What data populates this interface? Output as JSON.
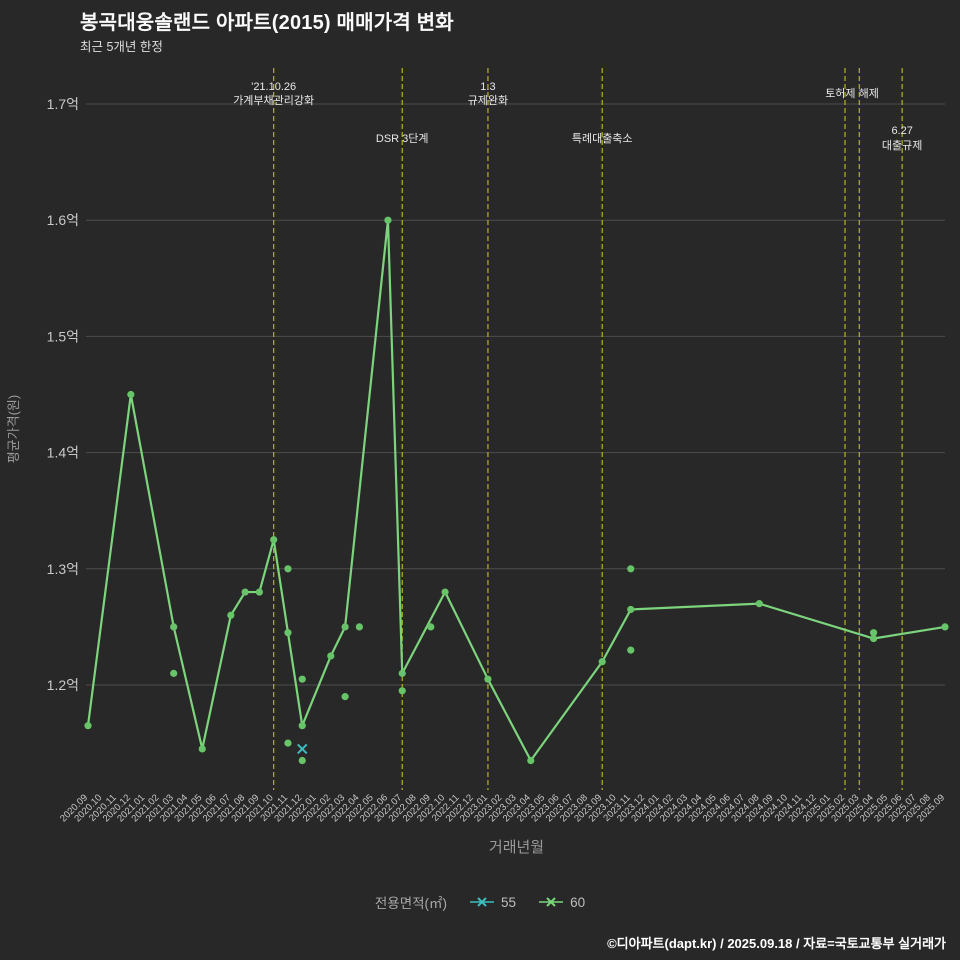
{
  "header": {
    "title": "봉곡대웅솔랜드 아파트(2015) 매매가격 변화",
    "subtitle": "최근 5개년 한정"
  },
  "footer": {
    "credit": "©디아파트(dapt.kr) / 2025.09.18 / 자료=국토교통부 실거래가"
  },
  "legend": {
    "label": "전용면적(㎡)",
    "items": [
      {
        "name": "55",
        "color": "#3dbdbd"
      },
      {
        "name": "60",
        "color": "#7cd47c"
      }
    ]
  },
  "chart_data": {
    "type": "line",
    "title": "봉곡대웅솔랜드 아파트(2015) 매매가격 변화",
    "subtitle": "최근 5개년 한정",
    "xlabel": "거래년월",
    "ylabel": "평균가격(원)",
    "unit": "억",
    "ylim": [
      1.11,
      1.73
    ],
    "grid": "horizontal",
    "legend_position": "bottom",
    "colors": {
      "background": "#282828",
      "grid": "#4d4d4d",
      "tick_text": "#c9c9c9",
      "axis_title": "#9a9a9a",
      "event_line": "#b5b51e",
      "event_text": "#e8e8e8",
      "line_60": "#7cd47c",
      "marker_60": "#68c468",
      "series_55": "#3dbdbd"
    },
    "y_ticks": [
      {
        "value": 1.2,
        "label": "1.2억"
      },
      {
        "value": 1.3,
        "label": "1.3억"
      },
      {
        "value": 1.4,
        "label": "1.4억"
      },
      {
        "value": 1.5,
        "label": "1.5억"
      },
      {
        "value": 1.6,
        "label": "1.6억"
      },
      {
        "value": 1.7,
        "label": "1.7억"
      }
    ],
    "categories": [
      "2020.09",
      "2020.10",
      "2020.11",
      "2020.12",
      "2021.01",
      "2021.02",
      "2021.03",
      "2021.04",
      "2021.05",
      "2021.06",
      "2021.07",
      "2021.08",
      "2021.09",
      "2021.10",
      "2021.11",
      "2021.12",
      "2022.01",
      "2022.02",
      "2022.03",
      "2022.04",
      "2022.05",
      "2022.06",
      "2022.07",
      "2022.08",
      "2022.09",
      "2022.10",
      "2022.11",
      "2022.12",
      "2023.01",
      "2023.02",
      "2023.03",
      "2023.04",
      "2023.05",
      "2023.06",
      "2023.07",
      "2023.08",
      "2023.09",
      "2023.10",
      "2023.11",
      "2023.12",
      "2024.01",
      "2024.02",
      "2024.03",
      "2024.04",
      "2024.05",
      "2024.06",
      "2024.07",
      "2024.08",
      "2024.09",
      "2024.10",
      "2024.11",
      "2024.12",
      "2025.01",
      "2025.02",
      "2025.03",
      "2025.04",
      "2025.05",
      "2025.06",
      "2025.07",
      "2025.08",
      "2025.09"
    ],
    "series": [
      {
        "name": "55",
        "style": "xmarker",
        "color": "#3dbdbd",
        "points": [
          {
            "x": "2021.12",
            "y": 1.145
          }
        ]
      },
      {
        "name": "60",
        "style": "line",
        "color": "#7cd47c",
        "marker_color": "#68c468",
        "points": [
          {
            "x": "2020.09",
            "y": 1.165
          },
          {
            "x": "2020.12",
            "y": 1.45
          },
          {
            "x": "2021.03",
            "y": 1.25
          },
          {
            "x": "2021.05",
            "y": 1.145
          },
          {
            "x": "2021.07",
            "y": 1.26
          },
          {
            "x": "2021.08",
            "y": 1.28
          },
          {
            "x": "2021.09",
            "y": 1.28
          },
          {
            "x": "2021.10",
            "y": 1.325
          },
          {
            "x": "2021.11",
            "y": 1.245
          },
          {
            "x": "2021.12",
            "y": 1.165
          },
          {
            "x": "2022.02",
            "y": 1.225
          },
          {
            "x": "2022.03",
            "y": 1.25
          },
          {
            "x": "2022.06",
            "y": 1.6
          },
          {
            "x": "2022.07",
            "y": 1.21
          },
          {
            "x": "2022.10",
            "y": 1.28
          },
          {
            "x": "2023.01",
            "y": 1.205
          },
          {
            "x": "2023.04",
            "y": 1.135
          },
          {
            "x": "2023.09",
            "y": 1.22
          },
          {
            "x": "2023.11",
            "y": 1.265
          },
          {
            "x": "2024.08",
            "y": 1.27
          },
          {
            "x": "2025.04",
            "y": 1.24
          },
          {
            "x": "2025.09",
            "y": 1.25
          }
        ],
        "extra_points": [
          {
            "x": "2021.03",
            "y": 1.21
          },
          {
            "x": "2021.11",
            "y": 1.3
          },
          {
            "x": "2021.11",
            "y": 1.15
          },
          {
            "x": "2021.12",
            "y": 1.205
          },
          {
            "x": "2021.12",
            "y": 1.135
          },
          {
            "x": "2022.03",
            "y": 1.19
          },
          {
            "x": "2022.04",
            "y": 1.25
          },
          {
            "x": "2022.07",
            "y": 1.195
          },
          {
            "x": "2022.09",
            "y": 1.25
          },
          {
            "x": "2023.11",
            "y": 1.3
          },
          {
            "x": "2023.11",
            "y": 1.23
          },
          {
            "x": "2025.04",
            "y": 1.245
          }
        ]
      }
    ],
    "events": [
      {
        "month": "2021.10",
        "row": "top",
        "lines": [
          "'21.10.26",
          "가계부채관리강화"
        ]
      },
      {
        "month": "2022.07",
        "row": "mid",
        "lines": [
          "DSR 3단계"
        ]
      },
      {
        "month": "2023.01",
        "row": "top",
        "lines": [
          "1.3",
          "규제완화"
        ]
      },
      {
        "month": "2023.09",
        "row": "mid",
        "lines": [
          "특례대출축소"
        ]
      },
      {
        "month": "2025.02",
        "row": "top",
        "dx": 7,
        "lines": [
          "토허제 해제"
        ]
      },
      {
        "month": "2025.03",
        "row": "top",
        "lines": []
      },
      {
        "month": "2025.06",
        "row": "mid",
        "lines": [
          "6.27",
          "대출규제"
        ]
      }
    ]
  }
}
